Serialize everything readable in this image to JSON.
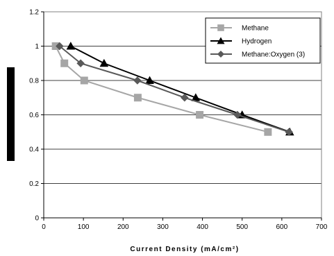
{
  "chart_data": {
    "type": "line",
    "title": "",
    "xlabel": "Current Density (mA/cm²)",
    "ylabel": "",
    "xlim": [
      0,
      700
    ],
    "ylim": [
      0,
      1.2
    ],
    "xticks": [
      "0",
      "100",
      "200",
      "300",
      "400",
      "500",
      "600",
      "700"
    ],
    "yticks": [
      "0",
      "0.2",
      "0.4",
      "0.6",
      "0.8",
      "1",
      "1.2"
    ],
    "grid": "horizontal",
    "legend_position": "top-right",
    "series": [
      {
        "name": "Methane",
        "color": "#a6a6a6",
        "marker": "square",
        "x": [
          30,
          52,
          102,
          237,
          393,
          565
        ],
        "y": [
          1.0,
          0.9,
          0.8,
          0.7,
          0.6,
          0.5
        ]
      },
      {
        "name": "Hydrogen",
        "color": "#000000",
        "marker": "triangle",
        "x": [
          68,
          152,
          267,
          383,
          500,
          620
        ],
        "y": [
          1.0,
          0.9,
          0.8,
          0.7,
          0.6,
          0.5
        ]
      },
      {
        "name": "Methane:Oxygen (3)",
        "color": "#595959",
        "marker": "diamond",
        "x": [
          40,
          93,
          236,
          355,
          488,
          618
        ],
        "y": [
          1.0,
          0.9,
          0.8,
          0.7,
          0.6,
          0.5
        ]
      }
    ]
  }
}
